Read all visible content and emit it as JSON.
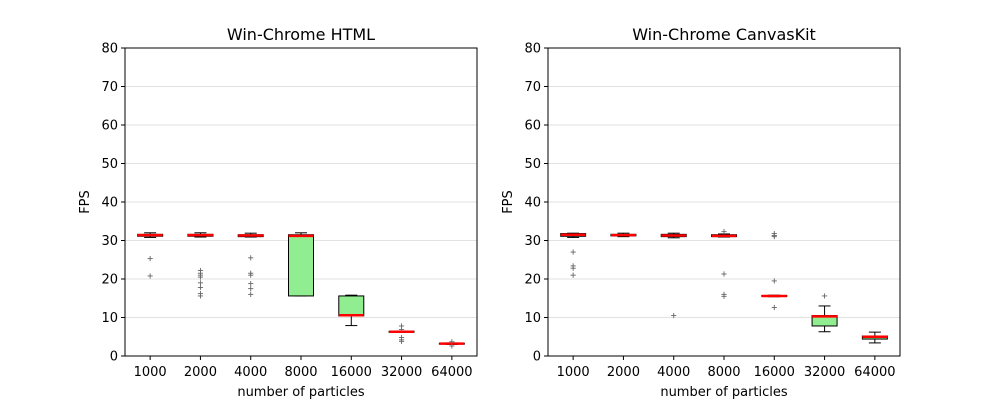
{
  "chart_data": [
    {
      "type": "box",
      "title": "Win-Chrome HTML",
      "xlabel": "number of particles",
      "ylabel": "FPS",
      "ylim": [
        0,
        80
      ],
      "yticks": [
        0,
        10,
        20,
        30,
        40,
        50,
        60,
        70,
        80
      ],
      "grid": "horizontal",
      "categories": [
        "1000",
        "2000",
        "4000",
        "8000",
        "16000",
        "32000",
        "64000"
      ],
      "box_color": "#90ee90",
      "median_color": "#ff0000",
      "boxes": [
        {
          "whisker_low": 30.8,
          "q1": 31.1,
          "median": 31.4,
          "q3": 31.6,
          "whisker_high": 32.0,
          "outliers": [
            25.3,
            20.8
          ]
        },
        {
          "whisker_low": 30.9,
          "q1": 31.1,
          "median": 31.4,
          "q3": 31.6,
          "whisker_high": 32.0,
          "outliers": [
            22.2,
            21.5,
            21.0,
            20.5,
            19.0,
            17.8,
            16.2,
            15.6
          ]
        },
        {
          "whisker_low": 30.9,
          "q1": 31.0,
          "median": 31.3,
          "q3": 31.5,
          "whisker_high": 31.9,
          "outliers": [
            25.5,
            21.5,
            21.0,
            18.8,
            17.5,
            16.0
          ]
        },
        {
          "whisker_low": 15.6,
          "q1": 15.6,
          "median": 31.2,
          "q3": 31.5,
          "whisker_high": 32.0,
          "outliers": []
        },
        {
          "whisker_low": 7.9,
          "q1": 10.4,
          "median": 10.6,
          "q3": 15.6,
          "whisker_high": 15.8,
          "outliers": []
        },
        {
          "whisker_low": 6.2,
          "q1": 6.2,
          "median": 6.3,
          "q3": 6.4,
          "whisker_high": 6.5,
          "outliers": [
            7.8,
            6.9,
            4.8,
            4.2,
            3.8
          ]
        },
        {
          "whisker_low": 3.0,
          "q1": 3.1,
          "median": 3.2,
          "q3": 3.3,
          "whisker_high": 3.4,
          "outliers": [
            3.7,
            2.6
          ]
        }
      ]
    },
    {
      "type": "box",
      "title": "Win-Chrome CanvasKit",
      "xlabel": "number of particles",
      "ylabel": "FPS",
      "ylim": [
        0,
        80
      ],
      "yticks": [
        0,
        10,
        20,
        30,
        40,
        50,
        60,
        70,
        80
      ],
      "grid": "horizontal",
      "categories": [
        "1000",
        "2000",
        "4000",
        "8000",
        "16000",
        "32000",
        "64000"
      ],
      "box_color": "#90ee90",
      "median_color": "#ff0000",
      "boxes": [
        {
          "whisker_low": 30.8,
          "q1": 31.1,
          "median": 31.5,
          "q3": 31.8,
          "whisker_high": 31.9,
          "outliers": [
            27.0,
            23.4,
            22.8,
            21.0
          ]
        },
        {
          "whisker_low": 31.0,
          "q1": 31.2,
          "median": 31.4,
          "q3": 31.6,
          "whisker_high": 31.9,
          "outliers": []
        },
        {
          "whisker_low": 30.7,
          "q1": 31.0,
          "median": 31.3,
          "q3": 31.6,
          "whisker_high": 31.9,
          "outliers": [
            10.5
          ]
        },
        {
          "whisker_low": 30.9,
          "q1": 31.0,
          "median": 31.2,
          "q3": 31.5,
          "whisker_high": 31.7,
          "outliers": [
            32.3,
            21.3,
            16.0,
            15.5
          ]
        },
        {
          "whisker_low": 15.4,
          "q1": 15.5,
          "median": 15.6,
          "q3": 15.7,
          "whisker_high": 15.8,
          "outliers": [
            31.8,
            31.3,
            31.0,
            19.5,
            12.6
          ]
        },
        {
          "whisker_low": 6.3,
          "q1": 7.8,
          "median": 10.3,
          "q3": 10.5,
          "whisker_high": 13.0,
          "outliers": [
            15.6
          ]
        },
        {
          "whisker_low": 3.4,
          "q1": 4.4,
          "median": 5.0,
          "q3": 5.2,
          "whisker_high": 6.2,
          "outliers": []
        }
      ]
    }
  ]
}
